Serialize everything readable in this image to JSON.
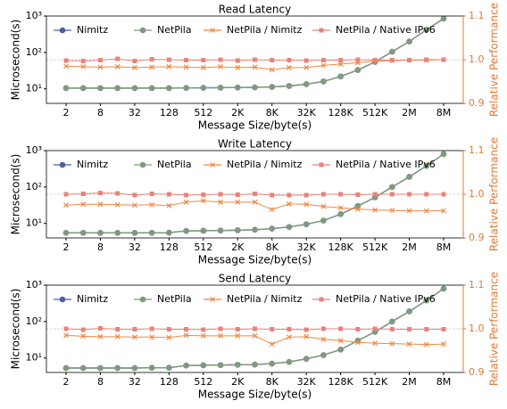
{
  "chart_data": [
    {
      "type": "line",
      "title": "Read Latency",
      "xlabel": "Message Size/byte(s)",
      "ylabel": "Microsecond(s)",
      "y2label": "Relative Performance",
      "categories": [
        "2",
        null,
        "8",
        null,
        "32",
        null,
        "128",
        null,
        "512",
        null,
        "2K",
        null,
        "8K",
        null,
        "32K",
        null,
        "128K",
        null,
        "512K",
        null,
        "2M",
        null,
        "8M"
      ],
      "yscale": "log",
      "ylim": [
        4,
        1000
      ],
      "yticks": [
        {
          "value": 10,
          "label": "10¹"
        },
        {
          "value": 100,
          "label": "10²"
        },
        {
          "value": 1000,
          "label": "10³"
        }
      ],
      "y2lim": [
        0.9,
        1.1
      ],
      "y2ticks": [
        0.9,
        {
          "value": 1,
          "label": "1.0"
        },
        1.1
      ],
      "y2_refline": 1,
      "y2color": "#e07b39",
      "legend": "upper center",
      "series": [
        {
          "name": "Nimitz",
          "color": "#4c5fa0",
          "marker": "circle",
          "values": [
            10.5,
            10.5,
            10.5,
            10.5,
            10.5,
            10.5,
            10.5,
            10.6,
            10.7,
            10.8,
            10.9,
            11,
            11.3,
            12,
            13.5,
            16,
            22,
            33,
            55,
            105,
            200,
            420,
            850
          ]
        },
        {
          "name": "NetPila",
          "color": "#7f9a7c",
          "marker": "circle",
          "values": [
            10.5,
            10.5,
            10.5,
            10.5,
            10.5,
            10.5,
            10.5,
            10.6,
            10.7,
            10.8,
            10.9,
            11,
            11.3,
            12,
            13.5,
            16,
            22,
            33,
            55,
            105,
            200,
            420,
            850
          ]
        },
        {
          "name": "NetPila / Nimitz",
          "color": "#ee8844",
          "marker": "x",
          "axis": "y2",
          "values": [
            0.985,
            0.984,
            0.983,
            0.984,
            0.982,
            0.983,
            0.984,
            0.983,
            0.982,
            0.984,
            0.982,
            0.983,
            0.977,
            0.982,
            0.982,
            0.987,
            0.99,
            0.993,
            0.997,
            0.998,
            0.999,
            0.999,
            1.0
          ]
        },
        {
          "name": "NetPila / Native IPv6",
          "color": "#e8837a",
          "marker": "square",
          "axis": "y2",
          "values": [
            0.998,
            0.997,
            0.999,
            1.002,
            0.997,
            1.001,
            1.0,
            0.999,
            0.999,
            1.0,
            0.998,
            1.0,
            0.999,
            0.999,
            0.998,
            0.999,
            0.999,
            1.0,
            0.999,
            0.999,
            0.999,
            1.0,
            1.0
          ]
        }
      ]
    },
    {
      "type": "line",
      "title": "Write Latency",
      "xlabel": "Message Size/byte(s)",
      "ylabel": "Microsecond(s)",
      "y2label": "Relative Performance",
      "categories": [
        "2",
        null,
        "8",
        null,
        "32",
        null,
        "128",
        null,
        "512",
        null,
        "2K",
        null,
        "8K",
        null,
        "32K",
        null,
        "128K",
        null,
        "512K",
        null,
        "2M",
        null,
        "8M"
      ],
      "yscale": "log",
      "ylim": [
        4,
        1000
      ],
      "yticks": [
        {
          "value": 10,
          "label": "10¹"
        },
        {
          "value": 100,
          "label": "10²"
        },
        {
          "value": 1000,
          "label": "10³"
        }
      ],
      "y2lim": [
        0.9,
        1.1
      ],
      "y2ticks": [
        0.9,
        {
          "value": 1,
          "label": "1.0"
        },
        1.1
      ],
      "y2_refline": 1,
      "y2color": "#e07b39",
      "legend": "upper center",
      "series": [
        {
          "name": "Nimitz",
          "color": "#4c5fa0",
          "marker": "circle",
          "values": [
            5.5,
            5.5,
            5.5,
            5.5,
            5.5,
            5.5,
            5.6,
            6.2,
            6.3,
            6.4,
            6.5,
            6.7,
            7.2,
            8,
            9.5,
            12,
            18,
            30,
            52,
            100,
            190,
            380,
            800
          ]
        },
        {
          "name": "NetPila",
          "color": "#7f9a7c",
          "marker": "circle",
          "values": [
            5.5,
            5.5,
            5.5,
            5.5,
            5.5,
            5.5,
            5.6,
            6.2,
            6.3,
            6.4,
            6.5,
            6.7,
            7.2,
            8,
            9.5,
            12,
            18,
            30,
            52,
            100,
            190,
            380,
            800
          ]
        },
        {
          "name": "NetPila / Nimitz",
          "color": "#ee8844",
          "marker": "x",
          "axis": "y2",
          "values": [
            0.975,
            0.977,
            0.977,
            0.976,
            0.975,
            0.976,
            0.974,
            0.982,
            0.985,
            0.982,
            0.982,
            0.982,
            0.965,
            0.978,
            0.977,
            0.972,
            0.969,
            0.966,
            0.964,
            0.963,
            0.962,
            0.962,
            0.962
          ]
        },
        {
          "name": "NetPila / Native IPv6",
          "color": "#e8837a",
          "marker": "square",
          "axis": "y2",
          "values": [
            1.0,
            1.001,
            1.003,
            1.002,
            0.998,
            1.001,
            1.0,
            0.998,
            0.999,
            1.0,
            0.999,
            1.001,
            0.998,
            0.998,
            0.998,
            1.0,
            1.0,
            0.999,
            1.0,
            1.0,
            1.0,
            1.0,
            1.0
          ]
        }
      ]
    },
    {
      "type": "line",
      "title": "Send Latency",
      "xlabel": "Message Size/byte(s)",
      "ylabel": "Microsecond(s)",
      "y2label": "Relative Performance",
      "categories": [
        "2",
        null,
        "8",
        null,
        "32",
        null,
        "128",
        null,
        "512",
        null,
        "2K",
        null,
        "8K",
        null,
        "32K",
        null,
        "128K",
        null,
        "512K",
        null,
        "2M",
        null,
        "8M"
      ],
      "yscale": "log",
      "ylim": [
        4,
        1000
      ],
      "yticks": [
        {
          "value": 10,
          "label": "10¹"
        },
        {
          "value": 100,
          "label": "10²"
        },
        {
          "value": 1000,
          "label": "10³"
        }
      ],
      "y2lim": [
        0.9,
        1.1
      ],
      "y2ticks": [
        0.9,
        {
          "value": 1,
          "label": "1.0"
        },
        1.1
      ],
      "y2_refline": 1,
      "y2color": "#e07b39",
      "legend": "upper center",
      "series": [
        {
          "name": "Nimitz",
          "color": "#4c5fa0",
          "marker": "circle",
          "values": [
            5.3,
            5.3,
            5.3,
            5.3,
            5.3,
            5.4,
            5.4,
            6.2,
            6.3,
            6.4,
            6.5,
            6.6,
            7,
            7.8,
            9.5,
            12,
            17,
            30,
            52,
            100,
            190,
            380,
            800
          ]
        },
        {
          "name": "NetPila",
          "color": "#7f9a7c",
          "marker": "circle",
          "values": [
            5.3,
            5.3,
            5.3,
            5.3,
            5.3,
            5.4,
            5.4,
            6.2,
            6.3,
            6.4,
            6.5,
            6.6,
            7,
            7.8,
            9.5,
            12,
            17,
            30,
            52,
            100,
            190,
            380,
            800
          ]
        },
        {
          "name": "NetPila / Nimitz",
          "color": "#ee8844",
          "marker": "x",
          "axis": "y2",
          "values": [
            0.985,
            0.983,
            0.982,
            0.982,
            0.981,
            0.981,
            0.98,
            0.985,
            0.984,
            0.984,
            0.984,
            0.984,
            0.965,
            0.981,
            0.982,
            0.976,
            0.973,
            0.969,
            0.967,
            0.966,
            0.965,
            0.964,
            0.965
          ]
        },
        {
          "name": "NetPila / Native IPv6",
          "color": "#e8837a",
          "marker": "square",
          "axis": "y2",
          "values": [
            1.0,
            0.998,
            1.001,
            0.999,
            0.999,
            1.0,
            0.999,
            0.999,
            0.998,
            1.0,
            0.999,
            1.0,
            0.999,
            0.999,
            0.998,
            1.0,
            1.0,
            0.999,
            1.0,
            0.999,
            0.999,
            0.999,
            0.999
          ]
        }
      ]
    }
  ]
}
